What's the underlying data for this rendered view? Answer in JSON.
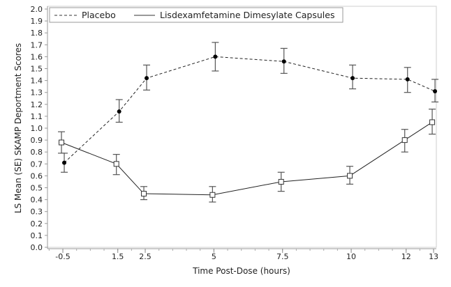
{
  "chart_data": {
    "type": "line",
    "title": "",
    "xlabel": "Time Post-Dose (hours)",
    "ylabel": "LS Mean (SE) SKAMP Deportment Scores",
    "x": [
      -0.5,
      1.5,
      2.5,
      5,
      7.5,
      10,
      12,
      13
    ],
    "x_tick_labels": [
      "-0.5",
      "1.5",
      "2.5",
      "5",
      "7.5",
      "10",
      "12",
      "13"
    ],
    "xlim": [
      -1.06,
      13.1
    ],
    "ylim": [
      0,
      2.0
    ],
    "y_ticks": [
      0.0,
      0.1,
      0.2,
      0.3,
      0.4,
      0.5,
      0.6,
      0.7,
      0.8,
      0.9,
      1.0,
      1.1,
      1.2,
      1.3,
      1.4,
      1.5,
      1.6,
      1.7,
      1.8,
      1.9,
      2.0
    ],
    "y_tick_labels": [
      "0.0",
      "0.1",
      "0.2",
      "0.3",
      "0.4",
      "0.5",
      "0.6",
      "0.7",
      "0.8",
      "0.9",
      "1.0",
      "1.1",
      "1.2",
      "1.3",
      "1.4",
      "1.5",
      "1.6",
      "1.7",
      "1.8",
      "1.9",
      "2.0"
    ],
    "grid": false,
    "legend_position": "top-left",
    "series": [
      {
        "name": "Placebo",
        "style": "dashed",
        "marker": "filled-circle",
        "color": "#222222",
        "values": [
          0.71,
          1.14,
          1.42,
          1.6,
          1.56,
          1.42,
          1.41,
          1.31
        ],
        "lower": [
          0.63,
          1.05,
          1.32,
          1.48,
          1.46,
          1.33,
          1.3,
          1.22
        ],
        "upper": [
          0.79,
          1.24,
          1.53,
          1.72,
          1.67,
          1.53,
          1.51,
          1.41
        ]
      },
      {
        "name": "Lisdexamfetamine Dimesylate Capsules",
        "style": "solid",
        "marker": "open-square",
        "color": "#222222",
        "values": [
          0.88,
          0.7,
          0.45,
          0.44,
          0.55,
          0.6,
          0.9,
          1.05
        ],
        "lower": [
          0.79,
          0.61,
          0.4,
          0.38,
          0.47,
          0.53,
          0.8,
          0.95
        ],
        "upper": [
          0.97,
          0.78,
          0.51,
          0.51,
          0.63,
          0.68,
          0.99,
          1.16
        ]
      }
    ]
  }
}
